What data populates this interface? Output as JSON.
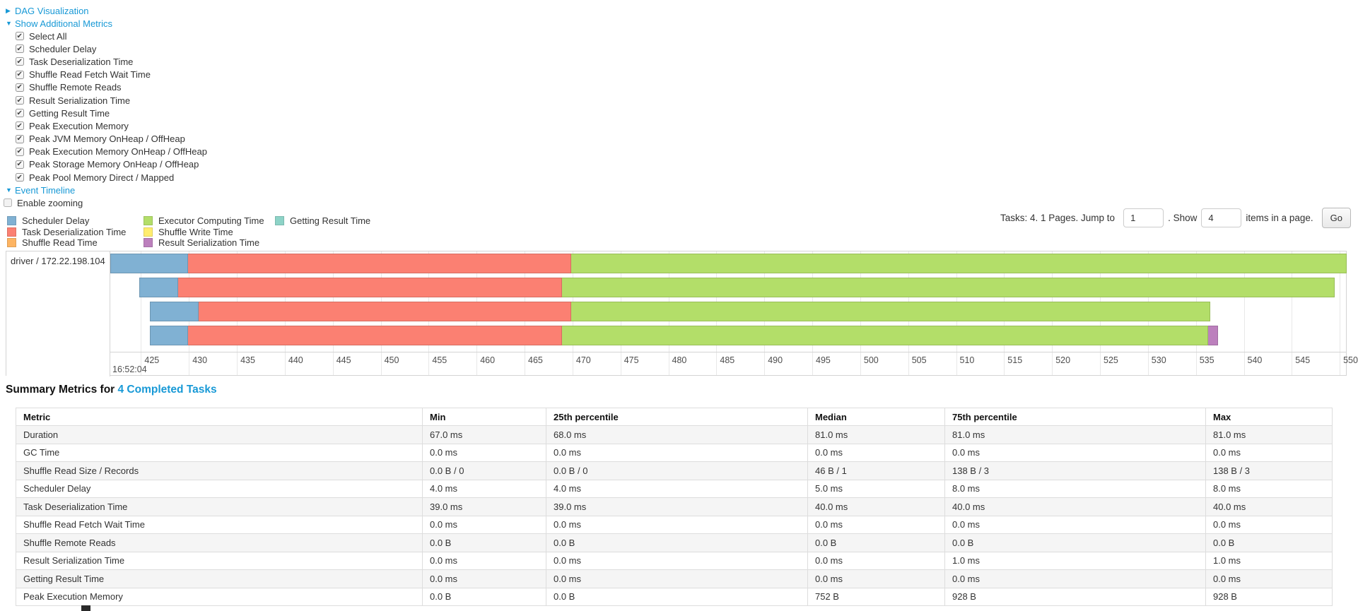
{
  "panel": {
    "dag_link": "DAG Visualization",
    "metrics_link": "Show Additional Metrics",
    "timeline_link": "Event Timeline",
    "enable_zooming": "Enable zooming",
    "checkboxes": [
      {
        "label": "Select All",
        "checked": true
      },
      {
        "label": "Scheduler Delay",
        "checked": true
      },
      {
        "label": "Task Deserialization Time",
        "checked": true
      },
      {
        "label": "Shuffle Read Fetch Wait Time",
        "checked": true
      },
      {
        "label": "Shuffle Remote Reads",
        "checked": true
      },
      {
        "label": "Result Serialization Time",
        "checked": true
      },
      {
        "label": "Getting Result Time",
        "checked": true
      },
      {
        "label": "Peak Execution Memory",
        "checked": true
      },
      {
        "label": "Peak JVM Memory OnHeap / OffHeap",
        "checked": true
      },
      {
        "label": "Peak Execution Memory OnHeap / OffHeap",
        "checked": true
      },
      {
        "label": "Peak Storage Memory OnHeap / OffHeap",
        "checked": true
      },
      {
        "label": "Peak Pool Memory Direct / Mapped",
        "checked": true
      }
    ]
  },
  "legend": {
    "columns": [
      [
        {
          "label": "Scheduler Delay",
          "color": "#80B1D3"
        },
        {
          "label": "Task Deserialization Time",
          "color": "#FB8072"
        },
        {
          "label": "Shuffle Read Time",
          "color": "#FDB462"
        }
      ],
      [
        {
          "label": "Executor Computing Time",
          "color": "#B3DE69"
        },
        {
          "label": "Shuffle Write Time",
          "color": "#FFED6F"
        },
        {
          "label": "Result Serialization Time",
          "color": "#BC80BD"
        }
      ],
      [
        {
          "label": "Getting Result Time",
          "color": "#8DD3C7"
        }
      ]
    ]
  },
  "pagination": {
    "prefix": "Tasks: 4. 1 Pages. Jump to",
    "jump_value": "1",
    "mid": ". Show",
    "show_value": "4",
    "suffix": "items in a page.",
    "go_label": "Go"
  },
  "chart_data": {
    "type": "timeline",
    "executor_label": "driver / 172.22.198.104",
    "time_of_day_label": "16:52:04",
    "axis_unit": "ms within 16:52:04",
    "time_start": 421.8,
    "time_end": 550.8,
    "ticks": [
      425,
      430,
      435,
      440,
      445,
      450,
      455,
      460,
      465,
      470,
      475,
      480,
      485,
      490,
      495,
      500,
      505,
      510,
      515,
      520,
      525,
      530,
      535,
      540,
      545,
      550
    ],
    "colors": {
      "scheduler_delay": "#80B1D3",
      "task_deserialization": "#FB8072",
      "executor_computing": "#B3DE69",
      "result_serialization": "#BC80BD"
    },
    "tasks": [
      {
        "segments": [
          {
            "kind": "scheduler_delay",
            "start": 421.8,
            "end": 429.9
          },
          {
            "kind": "task_deserialization",
            "start": 429.9,
            "end": 469.9
          },
          {
            "kind": "executor_computing",
            "start": 469.9,
            "end": 550.7
          }
        ]
      },
      {
        "segments": [
          {
            "kind": "scheduler_delay",
            "start": 424.8,
            "end": 428.9
          },
          {
            "kind": "task_deserialization",
            "start": 428.9,
            "end": 468.9
          },
          {
            "kind": "executor_computing",
            "start": 468.9,
            "end": 549.5
          }
        ]
      },
      {
        "segments": [
          {
            "kind": "scheduler_delay",
            "start": 425.9,
            "end": 431.0
          },
          {
            "kind": "task_deserialization",
            "start": 431.0,
            "end": 469.9
          },
          {
            "kind": "executor_computing",
            "start": 469.9,
            "end": 536.5
          }
        ]
      },
      {
        "segments": [
          {
            "kind": "scheduler_delay",
            "start": 425.9,
            "end": 429.9
          },
          {
            "kind": "task_deserialization",
            "start": 429.9,
            "end": 468.9
          },
          {
            "kind": "executor_computing",
            "start": 468.9,
            "end": 536.3
          },
          {
            "kind": "result_serialization",
            "start": 536.3,
            "end": 537.3
          }
        ]
      }
    ]
  },
  "summary": {
    "title_prefix": "Summary Metrics for ",
    "title_link": "4 Completed Tasks",
    "table": {
      "headers": [
        "Metric",
        "Min",
        "25th percentile",
        "Median",
        "75th percentile",
        "Max"
      ],
      "rows": [
        {
          "metric": "Duration",
          "values": [
            "67.0 ms",
            "68.0 ms",
            "81.0 ms",
            "81.0 ms",
            "81.0 ms"
          ]
        },
        {
          "metric": "GC Time",
          "values": [
            "0.0 ms",
            "0.0 ms",
            "0.0 ms",
            "0.0 ms",
            "0.0 ms"
          ]
        },
        {
          "metric": "Shuffle Read Size / Records",
          "values": [
            "0.0 B / 0",
            "0.0 B / 0",
            "46 B / 1",
            "138 B / 3",
            "138 B / 3"
          ]
        },
        {
          "metric": "Scheduler Delay",
          "values": [
            "4.0 ms",
            "4.0 ms",
            "5.0 ms",
            "8.0 ms",
            "8.0 ms"
          ]
        },
        {
          "metric": "Task Deserialization Time",
          "values": [
            "39.0 ms",
            "39.0 ms",
            "40.0 ms",
            "40.0 ms",
            "40.0 ms"
          ]
        },
        {
          "metric": "Shuffle Read Fetch Wait Time",
          "values": [
            "0.0 ms",
            "0.0 ms",
            "0.0 ms",
            "0.0 ms",
            "0.0 ms"
          ]
        },
        {
          "metric": "Shuffle Remote Reads",
          "values": [
            "0.0 B",
            "0.0 B",
            "0.0 B",
            "0.0 B",
            "0.0 B"
          ]
        },
        {
          "metric": "Result Serialization Time",
          "values": [
            "0.0 ms",
            "0.0 ms",
            "0.0 ms",
            "1.0 ms",
            "1.0 ms"
          ]
        },
        {
          "metric": "Getting Result Time",
          "values": [
            "0.0 ms",
            "0.0 ms",
            "0.0 ms",
            "0.0 ms",
            "0.0 ms"
          ]
        },
        {
          "metric": "Peak Execution Memory",
          "values": [
            "0.0 B",
            "0.0 B",
            "752 B",
            "928 B",
            "928 B"
          ]
        }
      ]
    }
  }
}
